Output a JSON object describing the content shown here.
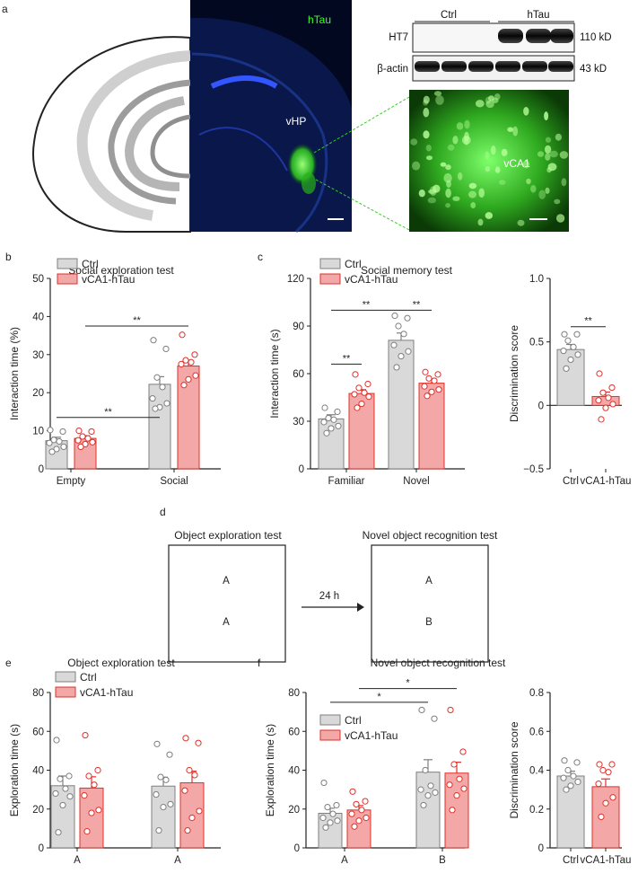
{
  "panel_labels": {
    "a": "a",
    "b": "b",
    "c": "c",
    "d": "d",
    "e": "e",
    "f": "f"
  },
  "panel_a": {
    "micro_label": "hTau",
    "region_label": "vHP",
    "zoom_label": "vCA1",
    "blot": {
      "group_ctrl": "Ctrl",
      "group_htau": "hTau",
      "row1": "HT7",
      "row2": "β-actin",
      "size1": "110 kD",
      "size2": "43 kD"
    }
  },
  "panel_d": {
    "left_title": "Object exploration test",
    "right_title": "Novel object recognition test",
    "interval": "24 h",
    "left_objects": [
      "A",
      "A"
    ],
    "right_objects": [
      "A",
      "B"
    ]
  },
  "colors": {
    "ctrl": "#d9d9d9",
    "ctrl_edge": "#7f7f7f",
    "htau": "#f4a7a7",
    "htau_edge": "#e0302a"
  },
  "chart_data": [
    {
      "id": "b",
      "type": "bar",
      "title": "Social exploration test",
      "ylabel": "Interaction time (%)",
      "xlabel": "",
      "ylim": [
        0,
        50
      ],
      "yticks": [
        0,
        10,
        20,
        30,
        40,
        50
      ],
      "categories": [
        "Empty",
        "Social"
      ],
      "series": [
        {
          "name": "Ctrl",
          "values": [
            7.4,
            22.2
          ],
          "sem": [
            0.9,
            2.0
          ],
          "points": [
            [
              10.2,
              9.8,
              7.6,
              7.2,
              6.8,
              5.8,
              5.2,
              4.5
            ],
            [
              33.8,
              31.5,
              24.0,
              21.5,
              18.5,
              17.2,
              16.2,
              15.8
            ]
          ]
        },
        {
          "name": "vCA1-hTau",
          "values": [
            8.0,
            27.0
          ],
          "sem": [
            0.7,
            1.3
          ],
          "points": [
            [
              10.0,
              9.8,
              8.5,
              8.0,
              7.5,
              7.0,
              6.5,
              5.8
            ],
            [
              35.2,
              30.0,
              28.5,
              28.0,
              27.5,
              24.5,
              23.5,
              22.0
            ]
          ]
        }
      ],
      "legend": "top-left",
      "significance": [
        {
          "label": "**",
          "from": [
            0,
            0
          ],
          "to": [
            1,
            0
          ],
          "y": 13.5
        },
        {
          "label": "**",
          "from": [
            0,
            1
          ],
          "to": [
            1,
            1
          ],
          "y": 37.5
        }
      ]
    },
    {
      "id": "c1",
      "type": "bar",
      "title": "Social memory test",
      "ylabel": "Interaction time (s)",
      "xlabel": "",
      "ylim": [
        0,
        120
      ],
      "yticks": [
        0,
        30,
        60,
        90,
        120
      ],
      "categories": [
        "Familiar",
        "Novel"
      ],
      "series": [
        {
          "name": "Ctrl",
          "values": [
            31.5,
            81.0
          ],
          "sem": [
            2.6,
            4.6
          ],
          "points": [
            [
              38.5,
              36.0,
              32.0,
              31.0,
              29.5,
              27.0,
              25.5,
              22.5
            ],
            [
              96.5,
              95.0,
              90.0,
              85.0,
              78.0,
              74.0,
              71.0,
              64.0
            ]
          ]
        },
        {
          "name": "vCA1-hTau",
          "values": [
            47.5,
            54.0
          ],
          "sem": [
            2.4,
            2.0
          ],
          "points": [
            [
              59.5,
              53.5,
              51.0,
              48.0,
              47.0,
              45.5,
              41.0,
              38.5
            ],
            [
              61.0,
              59.5,
              57.0,
              55.5,
              52.0,
              50.0,
              48.5,
              46.0
            ]
          ]
        }
      ],
      "legend": "top-left",
      "significance": [
        {
          "label": "**",
          "from": [
            0,
            0
          ],
          "to": [
            0,
            1
          ],
          "y": 66
        },
        {
          "label": "**",
          "from": [
            0,
            0
          ],
          "to": [
            1,
            0
          ],
          "y": 100
        },
        {
          "label": "**",
          "from": [
            1,
            0
          ],
          "to": [
            1,
            1
          ],
          "y": 100
        }
      ]
    },
    {
      "id": "c2",
      "type": "bar",
      "title": "",
      "ylabel": "Discrimination score",
      "xlabel": "",
      "ylim": [
        -0.5,
        1.0
      ],
      "yticks": [
        -0.5,
        0,
        0.5,
        1.0
      ],
      "ytick_labels": [
        "−0.5",
        "0",
        "0.5",
        "1.0"
      ],
      "categories": [
        "Ctrl",
        "vCA1-hTau"
      ],
      "values": [
        0.44,
        0.07
      ],
      "sem": [
        0.04,
        0.035
      ],
      "points": [
        [
          0.56,
          0.56,
          0.51,
          0.46,
          0.43,
          0.4,
          0.36,
          0.29
        ],
        [
          0.25,
          0.14,
          0.1,
          0.06,
          0.04,
          0.01,
          -0.02,
          -0.11
        ]
      ],
      "significance": [
        {
          "label": "**",
          "from": 0,
          "to": 1,
          "y": 0.62
        }
      ]
    },
    {
      "id": "e",
      "type": "bar",
      "title": "Object exploration test",
      "ylabel": "Exploration time (s)",
      "xlabel": "",
      "ylim": [
        0,
        80
      ],
      "yticks": [
        0,
        20,
        40,
        60,
        80
      ],
      "categories": [
        "A",
        "A"
      ],
      "series": [
        {
          "name": "Ctrl",
          "values": [
            32.0,
            31.8
          ],
          "sem": [
            5.0,
            4.6
          ],
          "points": [
            [
              55.5,
              37.0,
              35.5,
              30.5,
              28.0,
              26.5,
              22.0,
              8.0
            ],
            [
              53.5,
              48.0,
              36.5,
              35.0,
              27.5,
              22.5,
              21.0,
              9.0
            ]
          ]
        },
        {
          "name": "vCA1-hTau",
          "values": [
            30.8,
            33.5
          ],
          "sem": [
            5.8,
            6.0
          ],
          "points": [
            [
              58.0,
              40.0,
              37.0,
              32.5,
              27.0,
              19.5,
              18.0,
              8.5
            ],
            [
              56.5,
              54.0,
              40.0,
              37.5,
              29.5,
              19.0,
              15.5,
              9.0
            ]
          ]
        }
      ],
      "legend": "top-left"
    },
    {
      "id": "f1",
      "type": "bar",
      "title": "Novel object recognition test",
      "ylabel": "Exploration time (s)",
      "xlabel": "",
      "ylim": [
        0,
        80
      ],
      "yticks": [
        0,
        20,
        40,
        60,
        80
      ],
      "categories": [
        "A",
        "B"
      ],
      "series": [
        {
          "name": "Ctrl",
          "values": [
            17.8,
            39.0
          ],
          "sem": [
            2.6,
            6.4
          ],
          "points": [
            [
              33.5,
              22.0,
              21.0,
              17.5,
              15.5,
              14.0,
              13.0,
              10.5
            ],
            [
              71.0,
              66.5,
              40.0,
              32.0,
              30.0,
              28.5,
              27.0,
              22.0
            ]
          ]
        },
        {
          "name": "vCA1-hTau",
          "values": [
            19.5,
            38.5
          ],
          "sem": [
            2.3,
            5.6
          ],
          "points": [
            [
              29.0,
              24.0,
              22.5,
              19.5,
              17.5,
              15.5,
              14.0,
              11.0
            ],
            [
              71.0,
              49.5,
              43.0,
              35.5,
              32.5,
              30.5,
              27.0,
              19.5
            ]
          ]
        }
      ],
      "legend": "left",
      "significance": [
        {
          "label": "*",
          "from": [
            0,
            0
          ],
          "to": [
            1,
            0
          ],
          "y": 75
        },
        {
          "label": "*",
          "from": [
            0,
            1
          ],
          "to": [
            1,
            1
          ],
          "y": 82
        }
      ]
    },
    {
      "id": "f2",
      "type": "bar",
      "title": "",
      "ylabel": "Discrimination score",
      "xlabel": "",
      "ylim": [
        0,
        0.8
      ],
      "yticks": [
        0,
        0.2,
        0.4,
        0.6,
        0.8
      ],
      "ytick_labels": [
        "0",
        "0.2",
        "0.4",
        "0.6",
        "0.8"
      ],
      "categories": [
        "Ctrl",
        "vCA1-hTau"
      ],
      "values": [
        0.37,
        0.315
      ],
      "sem": [
        0.025,
        0.04
      ],
      "points": [
        [
          0.45,
          0.44,
          0.4,
          0.37,
          0.36,
          0.34,
          0.32,
          0.3
        ],
        [
          0.43,
          0.43,
          0.4,
          0.39,
          0.33,
          0.26,
          0.23,
          0.16
        ]
      ]
    }
  ]
}
